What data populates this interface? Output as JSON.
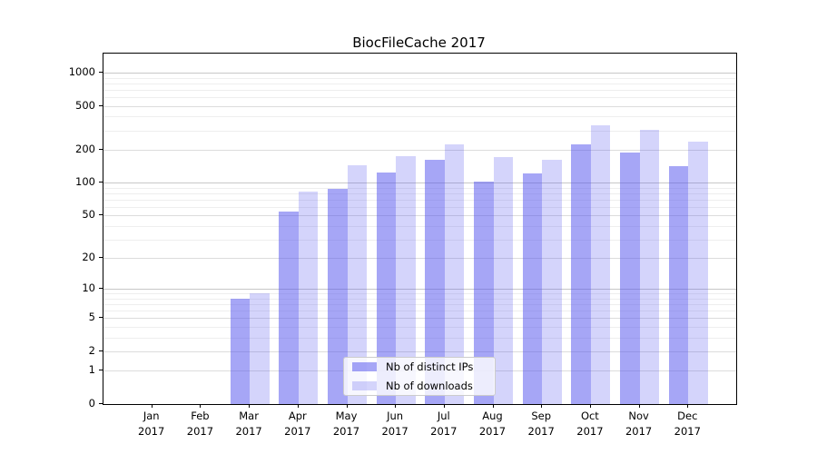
{
  "title": "BiocFileCache 2017",
  "colors": {
    "bar_distinct_ips": "rgba(77,77,238,0.5)",
    "bar_downloads": "rgba(77,77,238,0.24)",
    "grid_power10": "#c8c8c8",
    "grid_labeled": "#dcdcdc",
    "grid_minor": "#eeeeee",
    "spine": "#000000",
    "legend_border": "#cccccc"
  },
  "legend": {
    "entries": [
      {
        "label": "Nb of distinct IPs"
      },
      {
        "label": "Nb of downloads"
      }
    ]
  },
  "chart_data": {
    "type": "bar",
    "title": "BiocFileCache 2017",
    "xlabel": "",
    "ylabel": "",
    "scale": "log10(1+y)",
    "grid": true,
    "legend_position": "lower center",
    "categories": [
      "Jan 2017",
      "Feb 2017",
      "Mar 2017",
      "Apr 2017",
      "May 2017",
      "Jun 2017",
      "Jul 2017",
      "Aug 2017",
      "Sep 2017",
      "Oct 2017",
      "Nov 2017",
      "Dec 2017"
    ],
    "month_labels": [
      "Jan",
      "Feb",
      "Mar",
      "Apr",
      "May",
      "Jun",
      "Jul",
      "Aug",
      "Sep",
      "Oct",
      "Nov",
      "Dec"
    ],
    "year_label": "2017",
    "series": [
      {
        "name": "Nb of distinct IPs",
        "values": [
          0,
          0,
          8,
          54,
          88,
          124,
          161,
          103,
          121,
          224,
          190,
          142
        ]
      },
      {
        "name": "Nb of downloads",
        "values": [
          0,
          0,
          9,
          83,
          145,
          175,
          222,
          170,
          162,
          334,
          304,
          237
        ]
      }
    ],
    "y_ticks": [
      1000,
      500,
      200,
      100,
      50,
      20,
      10,
      5,
      2,
      1,
      0
    ],
    "y_minor_gridlines": [
      900,
      800,
      700,
      600,
      400,
      300,
      90,
      80,
      70,
      60,
      40,
      30,
      9,
      8,
      7,
      6,
      4,
      3
    ],
    "ylim": [
      0,
      1490
    ]
  }
}
